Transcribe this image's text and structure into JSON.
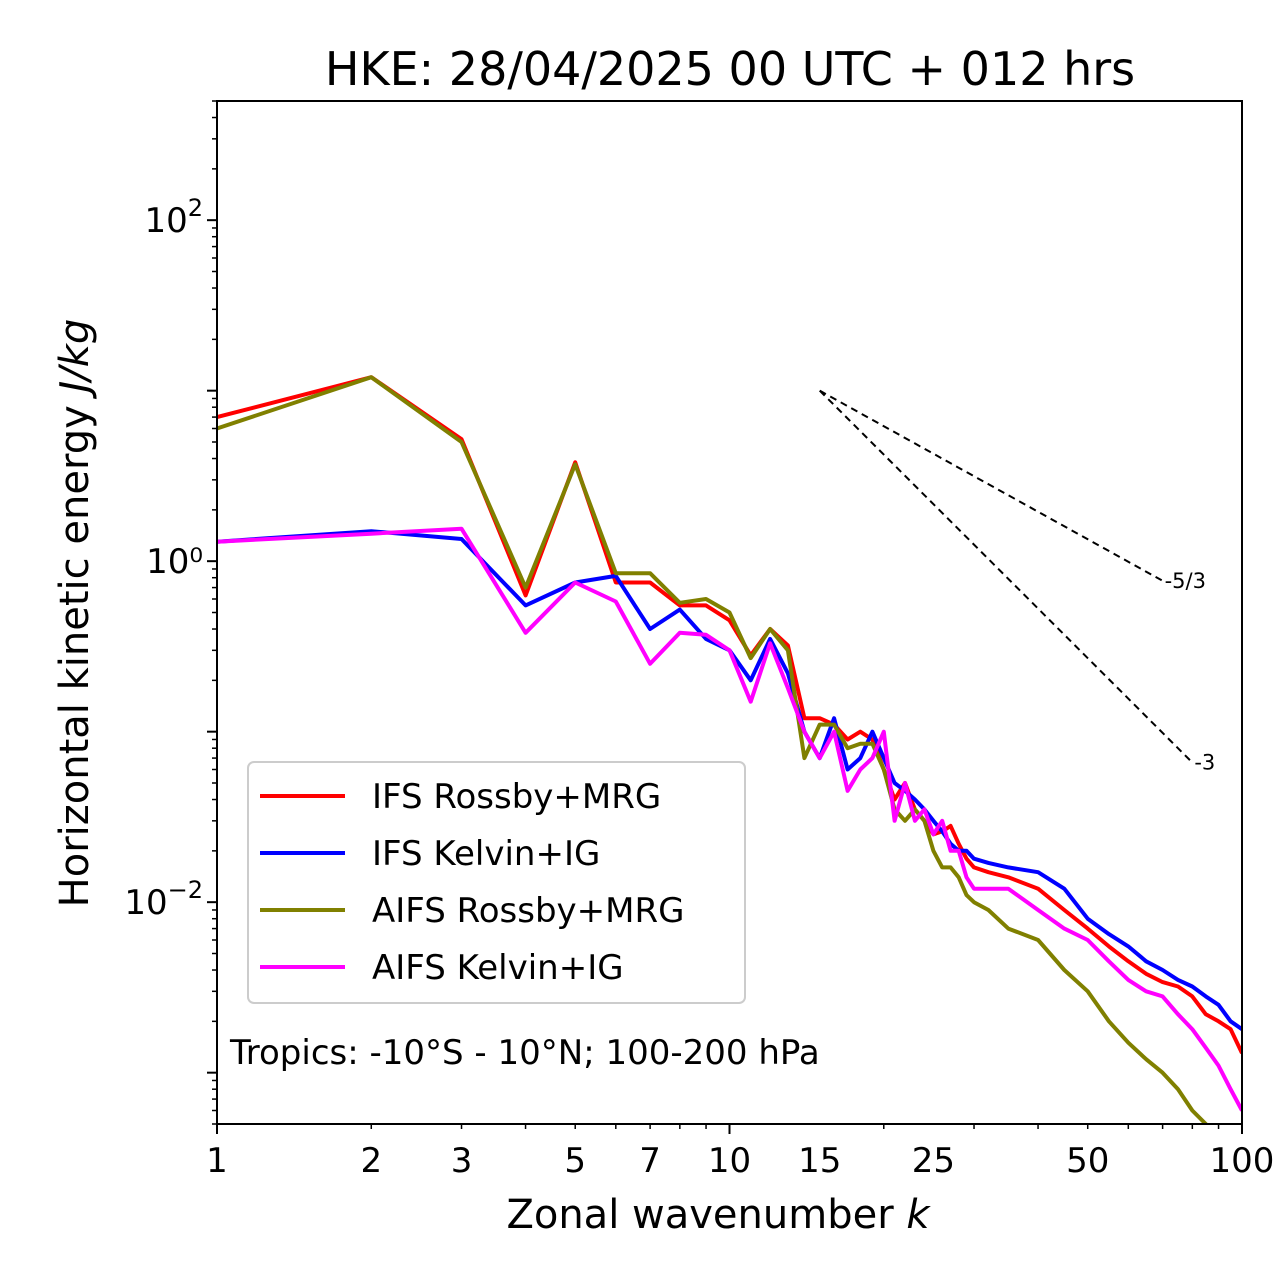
{
  "chart_data": {
    "type": "line",
    "title": "HKE: 28/04/2025 00 UTC + 012 hrs",
    "xlabel": "Zonal wavenumber",
    "xlabel_var": "k",
    "ylabel": "Horizontal kinetic energy",
    "ylabel_units": "J/kg",
    "xscale": "log",
    "yscale": "log",
    "xlim": [
      1,
      100
    ],
    "ylim": [
      0.0005,
      500
    ],
    "xticks": [
      {
        "value": 1,
        "label": "1"
      },
      {
        "value": 2,
        "label": "2"
      },
      {
        "value": 3,
        "label": "3"
      },
      {
        "value": 5,
        "label": "5"
      },
      {
        "value": 7,
        "label": "7"
      },
      {
        "value": 10,
        "label": "10"
      },
      {
        "value": 15,
        "label": "15"
      },
      {
        "value": 25,
        "label": "25"
      },
      {
        "value": 50,
        "label": "50"
      },
      {
        "value": 100,
        "label": "100"
      }
    ],
    "yticks": [
      {
        "value": 0.01,
        "base": "10",
        "exp": "−2"
      },
      {
        "value": 1,
        "base": "10",
        "exp": ""
      },
      {
        "value": 100,
        "base": "10",
        "exp": "2"
      }
    ],
    "y_tick_1_label": "10",
    "y_tick_1_text": "0",
    "legend_position": "lower-left",
    "annotation": "Tropics: -10°S - 10°N; 100-200 hPa",
    "reference_slopes": [
      {
        "label": "-5/3",
        "slope": -1.6667,
        "x_start": 15,
        "y_start": 10,
        "x_end": 70
      },
      {
        "label": "-3",
        "slope": -3,
        "x_start": 15,
        "y_start": 10,
        "x_end": 80
      }
    ],
    "series": [
      {
        "name": "IFS Rossby+MRG",
        "color": "#ff0000",
        "x": [
          1,
          2,
          3,
          4,
          5,
          6,
          7,
          8,
          9,
          10,
          11,
          12,
          13,
          14,
          15,
          16,
          17,
          18,
          19,
          20,
          21,
          22,
          23,
          24,
          25,
          26,
          27,
          28,
          29,
          30,
          32,
          35,
          40,
          45,
          50,
          55,
          60,
          65,
          70,
          75,
          80,
          85,
          90,
          95,
          100
        ],
        "values": [
          7.0,
          12.0,
          5.2,
          0.63,
          3.8,
          0.75,
          0.75,
          0.55,
          0.55,
          0.45,
          0.28,
          0.4,
          0.32,
          0.12,
          0.12,
          0.11,
          0.09,
          0.1,
          0.09,
          0.06,
          0.04,
          0.05,
          0.035,
          0.03,
          0.025,
          0.026,
          0.028,
          0.022,
          0.018,
          0.016,
          0.015,
          0.014,
          0.012,
          0.009,
          0.007,
          0.0055,
          0.0045,
          0.0038,
          0.0034,
          0.0032,
          0.0028,
          0.0022,
          0.002,
          0.0018,
          0.0013
        ]
      },
      {
        "name": "IFS Kelvin+IG",
        "color": "#0000ff",
        "x": [
          1,
          2,
          3,
          4,
          5,
          6,
          7,
          8,
          9,
          10,
          11,
          12,
          13,
          14,
          15,
          16,
          17,
          18,
          19,
          20,
          21,
          22,
          23,
          24,
          25,
          26,
          27,
          28,
          29,
          30,
          32,
          35,
          40,
          45,
          50,
          55,
          60,
          65,
          70,
          75,
          80,
          85,
          90,
          95,
          100
        ],
        "values": [
          1.3,
          1.5,
          1.35,
          0.55,
          0.75,
          0.82,
          0.4,
          0.52,
          0.35,
          0.3,
          0.2,
          0.35,
          0.22,
          0.1,
          0.07,
          0.12,
          0.06,
          0.07,
          0.1,
          0.07,
          0.05,
          0.045,
          0.04,
          0.035,
          0.03,
          0.026,
          0.022,
          0.02,
          0.02,
          0.018,
          0.017,
          0.016,
          0.015,
          0.012,
          0.008,
          0.0065,
          0.0055,
          0.0045,
          0.004,
          0.0035,
          0.0032,
          0.0028,
          0.0025,
          0.002,
          0.0018
        ]
      },
      {
        "name": "AIFS Rossby+MRG",
        "color": "#808000",
        "x": [
          1,
          2,
          3,
          4,
          5,
          6,
          7,
          8,
          9,
          10,
          11,
          12,
          13,
          14,
          15,
          16,
          17,
          18,
          19,
          20,
          21,
          22,
          23,
          24,
          25,
          26,
          27,
          28,
          29,
          30,
          32,
          35,
          40,
          45,
          50,
          55,
          60,
          65,
          70,
          75,
          80,
          85,
          90,
          95,
          100
        ],
        "values": [
          6.0,
          12.0,
          5.0,
          0.7,
          3.7,
          0.85,
          0.85,
          0.57,
          0.6,
          0.5,
          0.27,
          0.4,
          0.3,
          0.07,
          0.11,
          0.11,
          0.08,
          0.085,
          0.085,
          0.06,
          0.035,
          0.03,
          0.035,
          0.03,
          0.02,
          0.016,
          0.016,
          0.014,
          0.011,
          0.01,
          0.009,
          0.007,
          0.006,
          0.004,
          0.003,
          0.002,
          0.0015,
          0.0012,
          0.001,
          0.0008,
          0.0006,
          0.0005,
          0.0004,
          0.0004,
          0.0004
        ]
      },
      {
        "name": "AIFS Kelvin+IG",
        "color": "#ff00ff",
        "x": [
          1,
          2,
          3,
          4,
          5,
          6,
          7,
          8,
          9,
          10,
          11,
          12,
          13,
          14,
          15,
          16,
          17,
          18,
          19,
          20,
          21,
          22,
          23,
          24,
          25,
          26,
          27,
          28,
          29,
          30,
          32,
          35,
          40,
          45,
          50,
          55,
          60,
          65,
          70,
          75,
          80,
          85,
          90,
          95,
          100
        ],
        "values": [
          1.3,
          1.45,
          1.55,
          0.38,
          0.75,
          0.58,
          0.25,
          0.38,
          0.37,
          0.3,
          0.15,
          0.33,
          0.18,
          0.1,
          0.07,
          0.1,
          0.045,
          0.06,
          0.07,
          0.1,
          0.03,
          0.05,
          0.03,
          0.035,
          0.025,
          0.03,
          0.02,
          0.02,
          0.014,
          0.012,
          0.012,
          0.012,
          0.009,
          0.007,
          0.006,
          0.0045,
          0.0035,
          0.003,
          0.0028,
          0.0022,
          0.0018,
          0.0014,
          0.0011,
          0.0008,
          0.0006
        ]
      }
    ]
  }
}
